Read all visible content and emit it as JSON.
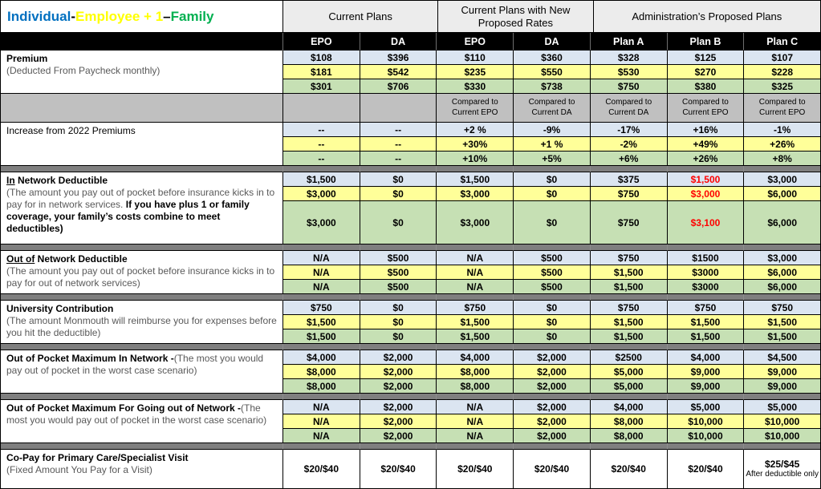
{
  "title": {
    "parts": [
      {
        "text": "Individual",
        "color": "#0070c0"
      },
      {
        "text": " -  ",
        "color": "#000000"
      },
      {
        "text": "Employee + 1",
        "color": "#ffff00"
      },
      {
        "text": " – ",
        "color": "#000000"
      },
      {
        "text": "Family",
        "color": "#00b050"
      }
    ]
  },
  "group_headers": [
    "Current Plans",
    "Current Plans with New Proposed Rates",
    "Administration’s Proposed Plans"
  ],
  "column_headers": [
    "EPO",
    "DA",
    "EPO",
    "DA",
    "Plan A",
    "Plan B",
    "Plan C"
  ],
  "tiers": [
    "Individual",
    "Employee + 1",
    "Family"
  ],
  "colors": {
    "tier_rows": [
      "#dbe5f1",
      "#ffff99",
      "#c6e0b4"
    ],
    "band_gray": "#c0c0c0",
    "separator_gray": "#7f7f7f",
    "header_gray": "#ececec",
    "red_text": "#ff0000"
  },
  "blocks": [
    {
      "type": "section",
      "name": "premium",
      "label_parts": [
        {
          "text": "Premium",
          "style": "b"
        },
        {
          "br": true
        },
        {
          "text": "(Deducted From Paycheck monthly)",
          "style": "g"
        }
      ],
      "rows": [
        [
          "$108",
          "$396",
          "$110",
          "$360",
          "$328",
          "$125",
          "$107"
        ],
        [
          "$181",
          "$542",
          "$235",
          "$550",
          "$530",
          "$270",
          "$228"
        ],
        [
          "$301",
          "$706",
          "$330",
          "$738",
          "$750",
          "$380",
          "$325"
        ]
      ]
    },
    {
      "type": "compare_band",
      "cells": [
        "",
        "",
        {
          "line1": "Compared to",
          "line2": "Current EPO"
        },
        {
          "line1": "Compared to",
          "line2": "Current DA"
        },
        {
          "line1": "Compared to",
          "line2": "Current DA"
        },
        {
          "line1": "Compared to",
          "line2": "Current EPO"
        },
        {
          "line1": "Compared to",
          "line2": "Current EPO"
        }
      ]
    },
    {
      "type": "section",
      "name": "increase",
      "label_parts": [
        {
          "text": "Increase from 2022 Premiums",
          "style": "n"
        }
      ],
      "rows": [
        [
          "--",
          "--",
          "+2 %",
          "-9%",
          "-17%",
          "+16%",
          "-1%"
        ],
        [
          "--",
          "--",
          "+30%",
          "+1 %",
          "-2%",
          "+49%",
          "+26%"
        ],
        [
          "--",
          "--",
          "+10%",
          "+5%",
          "+6%",
          "+26%",
          "+8%"
        ]
      ]
    },
    {
      "type": "separator"
    },
    {
      "type": "section",
      "name": "in-network-deductible",
      "label_parts": [
        {
          "text": "In",
          "style": "bu"
        },
        {
          "text": " Network Deductible",
          "style": "b"
        },
        {
          "br": true
        },
        {
          "text": "(The amount you pay out of pocket before insurance kicks in to pay for in network services. ",
          "style": "g"
        },
        {
          "text": "If you have plus 1 or family coverage, your family’s costs combine to meet deductibles)",
          "style": "b"
        }
      ],
      "rows": [
        [
          "$1,500",
          "$0",
          "$1,500",
          "$0",
          "$375",
          {
            "text": "$1,500",
            "color": "#ff0000"
          },
          "$3,000"
        ],
        [
          "$3,000",
          "$0",
          "$3,000",
          "$0",
          "$750",
          {
            "text": "$3,000",
            "color": "#ff0000"
          },
          "$6,000"
        ],
        [
          "$3,000",
          "$0",
          "$3,000",
          "$0",
          "$750",
          {
            "text": "$3,100",
            "color": "#ff0000"
          },
          "$6,000"
        ]
      ]
    },
    {
      "type": "separator"
    },
    {
      "type": "section",
      "name": "out-of-network-deductible",
      "label_parts": [
        {
          "text": "Out of",
          "style": "bu"
        },
        {
          "text": "  Network Deductible",
          "style": "b"
        },
        {
          "br": true
        },
        {
          "text": "(The amount you pay out of pocket before insurance kicks in to pay for out of network services)",
          "style": "g"
        }
      ],
      "rows": [
        [
          "N/A",
          "$500",
          "N/A",
          "$500",
          "$750",
          "$1500",
          "$3,000"
        ],
        [
          "N/A",
          "$500",
          "N/A",
          "$500",
          "$1,500",
          "$3000",
          "$6,000"
        ],
        [
          "N/A",
          "$500",
          "N/A",
          "$500",
          "$1,500",
          "$3000",
          "$6,000"
        ]
      ]
    },
    {
      "type": "separator"
    },
    {
      "type": "section",
      "name": "university-contribution",
      "label_parts": [
        {
          "text": "University Contribution",
          "style": "b"
        },
        {
          "br": true
        },
        {
          "text": "(The amount Monmouth will reimburse you for expenses before you hit the deductible)",
          "style": "g"
        }
      ],
      "rows": [
        [
          "$750",
          "$0",
          "$750",
          "$0",
          "$750",
          "$750",
          "$750"
        ],
        [
          "$1,500",
          "$0",
          "$1,500",
          "$0",
          "$1,500",
          "$1,500",
          "$1,500"
        ],
        [
          "$1,500",
          "$0",
          "$1,500",
          "$0",
          "$1,500",
          "$1,500",
          "$1,500"
        ]
      ]
    },
    {
      "type": "separator"
    },
    {
      "type": "section",
      "name": "oop-max-in-network",
      "label_parts": [
        {
          "text": "Out of Pocket Maximum In Network -",
          "style": "b"
        },
        {
          "text": "(The most you would pay out of pocket in the worst case scenario)",
          "style": "g"
        }
      ],
      "rows": [
        [
          "$4,000",
          "$2,000",
          "$4,000",
          "$2,000",
          "$2500",
          "$4,000",
          "$4,500"
        ],
        [
          "$8,000",
          "$2,000",
          "$8,000",
          "$2,000",
          "$5,000",
          "$9,000",
          "$9,000"
        ],
        [
          "$8,000",
          "$2,000",
          "$8,000",
          "$2,000",
          "$5,000",
          "$9,000",
          "$9,000"
        ]
      ]
    },
    {
      "type": "separator"
    },
    {
      "type": "section",
      "name": "oop-max-out-of-network",
      "label_parts": [
        {
          "text": "Out of Pocket Maximum For Going out of Network -",
          "style": "b"
        },
        {
          "text": "(The most you would pay out of pocket in the worst case scenario)",
          "style": "g"
        }
      ],
      "rows": [
        [
          "N/A",
          "$2,000",
          "N/A",
          "$2,000",
          "$4,000",
          "$5,000",
          "$5,000"
        ],
        [
          "N/A",
          "$2,000",
          "N/A",
          "$2,000",
          "$8,000",
          "$10,000",
          "$10,000"
        ],
        [
          "N/A",
          "$2,000",
          "N/A",
          "$2,000",
          "$8,000",
          "$10,000",
          "$10,000"
        ]
      ]
    },
    {
      "type": "separator"
    },
    {
      "type": "section",
      "name": "copay",
      "single": true,
      "label_parts": [
        {
          "text": "Co-Pay for Primary Care/Specialist Visit",
          "style": "b"
        },
        {
          "br": true
        },
        {
          "text": "(Fixed Amount You Pay for a Visit)",
          "style": "g"
        }
      ],
      "rows": [
        [
          "$20/$40",
          "$20/$40",
          "$20/$40",
          "$20/$40",
          "$20/$40",
          "$20/$40",
          {
            "text": "$25/$45",
            "note": "After deductible only"
          }
        ]
      ]
    }
  ]
}
